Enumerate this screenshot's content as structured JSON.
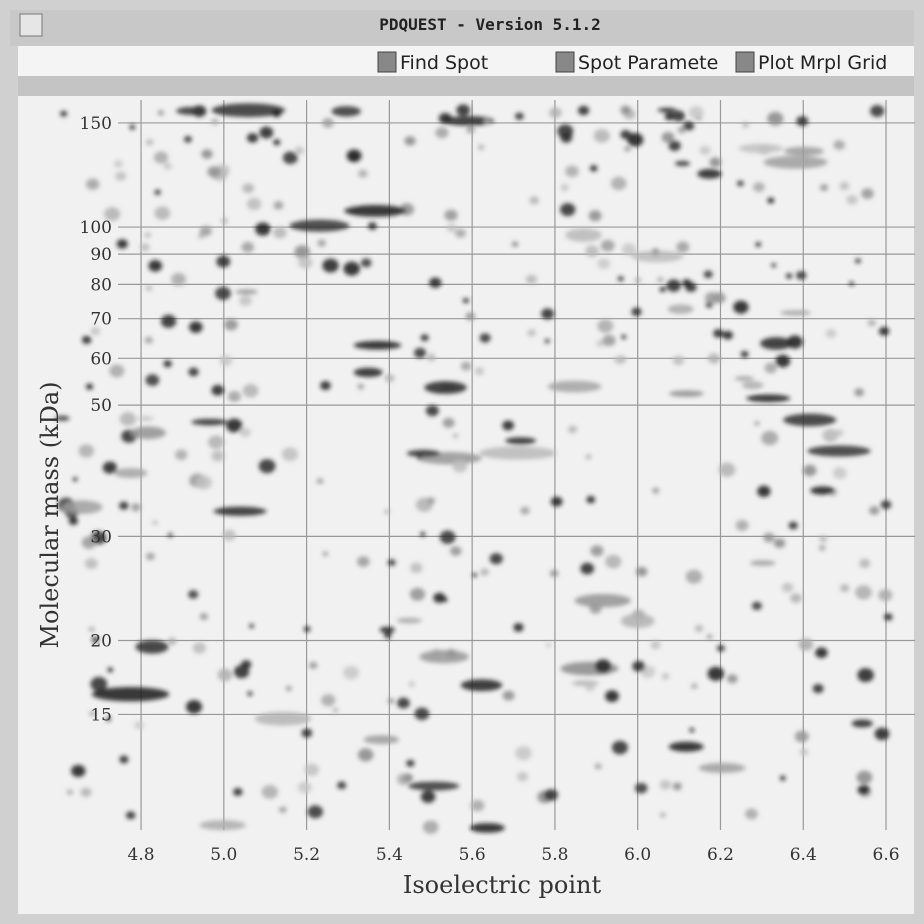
{
  "window": {
    "title": "PDQUEST - Version 5.1.2",
    "buttons": [
      "Find Spot",
      "Spot Paramete",
      "Plot Mrpl Grid"
    ]
  },
  "chart_data": {
    "type": "gel",
    "xlabel": "Isoelectric point",
    "ylabel": "Molecular mass (kDa)",
    "xlim": [
      4.58,
      6.67
    ],
    "ylim": [
      9.2,
      164
    ],
    "log_y": true,
    "grid": true,
    "xticks": [
      4.8,
      {
        "value": 5.0,
        "label": "5.0"
      },
      5.2,
      5.4,
      5.6,
      5.8,
      {
        "value": 6.0,
        "label": "6.0"
      },
      6.2,
      6.4,
      6.6
    ],
    "yticks": [
      15,
      20,
      30,
      50,
      60,
      70,
      80,
      90,
      100,
      150
    ]
  }
}
